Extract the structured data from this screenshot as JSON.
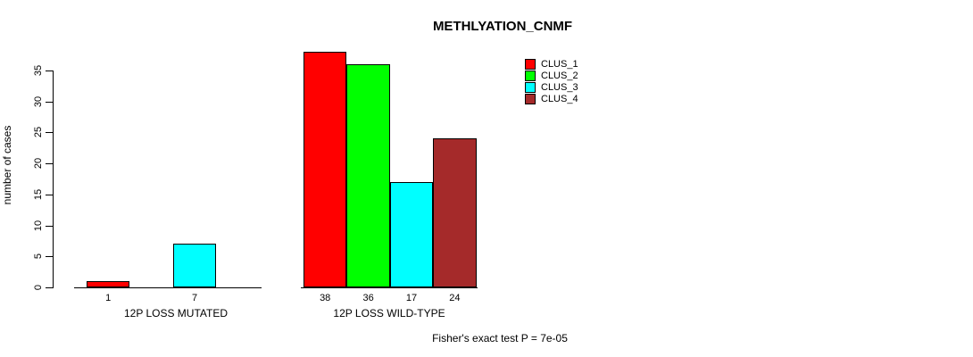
{
  "chart_data": {
    "type": "bar",
    "title": "METHLYATION_CNMF",
    "ylabel": "number of cases",
    "ylim": [
      0,
      38
    ],
    "yticks": [
      0,
      5,
      10,
      15,
      20,
      25,
      30,
      35
    ],
    "grid": false,
    "legend_position": "top-right",
    "categories": [
      "12P LOSS MUTATED",
      "12P LOSS WILD-TYPE"
    ],
    "series": [
      {
        "name": "CLUS_1",
        "color": "#ff0000",
        "values": [
          1,
          38
        ]
      },
      {
        "name": "CLUS_2",
        "color": "#00ff00",
        "values": [
          0,
          36
        ]
      },
      {
        "name": "CLUS_3",
        "color": "#00ffff",
        "values": [
          7,
          17
        ]
      },
      {
        "name": "CLUS_4",
        "color": "#a52a2a",
        "values": [
          0,
          24
        ]
      }
    ],
    "show_bar_values": true,
    "bar_value_labels_group1": [
      "1",
      "7"
    ],
    "bar_value_labels_group2": [
      "38",
      "36",
      "17",
      "24"
    ],
    "footnote": "Fisher's exact test P = 7e-05",
    "axis_color": "#000000",
    "background": "#ffffff"
  }
}
